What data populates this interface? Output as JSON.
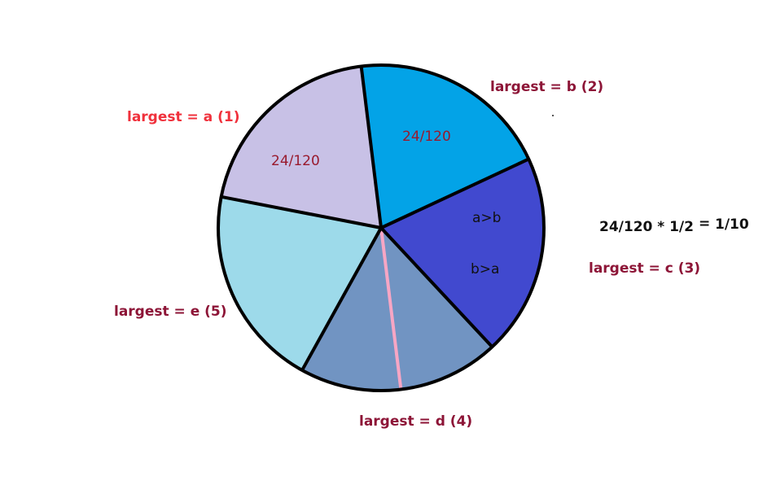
{
  "colors": {
    "seg_a": "#03a3e7",
    "seg_b": "#4149cf",
    "seg_c": "#7194c2",
    "seg_d": "#9ddaea",
    "seg_e": "#c8c1e6",
    "outline": "#000000",
    "divider": "#f7a6c4",
    "label_red": "#f0313c",
    "label_maroon": "#8d1537",
    "fraction_text": "#991a2d",
    "black_text": "#111111"
  },
  "segments": [
    {
      "id": "a",
      "fraction": 0.2,
      "fill": "seg_a",
      "inner_text": "24/120",
      "outer_label": "largest = a (1)"
    },
    {
      "id": "b",
      "fraction": 0.2,
      "fill": "seg_b",
      "inner_text": "24/120",
      "outer_label": "largest = b (2)"
    },
    {
      "id": "c",
      "fraction": 0.2,
      "fill": "seg_c",
      "inner_top": "a>b",
      "inner_bottom": "b>a",
      "outer_label": "largest = c (3)"
    },
    {
      "id": "d",
      "fraction": 0.2,
      "fill": "seg_d",
      "outer_label": "largest = d (4)"
    },
    {
      "id": "e",
      "fraction": 0.2,
      "fill": "seg_e",
      "outer_label": "largest = e (5)"
    }
  ],
  "equation": {
    "left": "24/120 * 1/2",
    "equals": "=",
    "right": "1/10"
  }
}
